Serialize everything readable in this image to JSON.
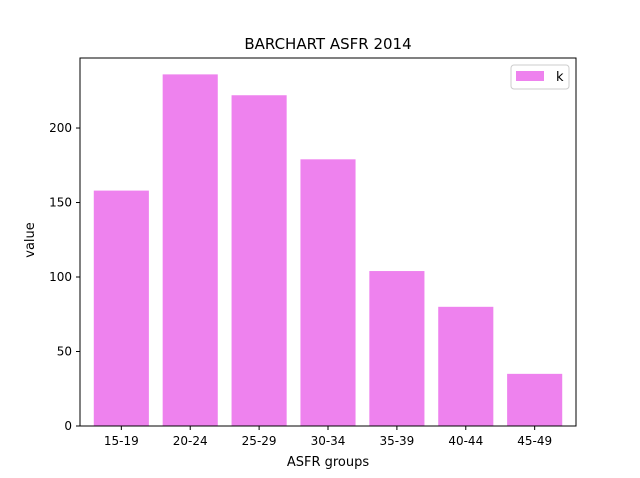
{
  "chart_data": {
    "type": "bar",
    "title": "BARCHART ASFR 2014",
    "xlabel": "ASFR groups",
    "ylabel": "value",
    "categories": [
      "15-19",
      "20-24",
      "25-29",
      "30-34",
      "35-39",
      "40-44",
      "45-49"
    ],
    "series": [
      {
        "name": "k",
        "values": [
          158,
          236,
          222,
          179,
          104,
          80,
          35
        ]
      }
    ],
    "ylim": [
      0,
      247
    ],
    "yticks": [
      0,
      50,
      100,
      150,
      200
    ],
    "grid": false,
    "legend_position": "top-right",
    "bar_color": "#ee82ee"
  }
}
